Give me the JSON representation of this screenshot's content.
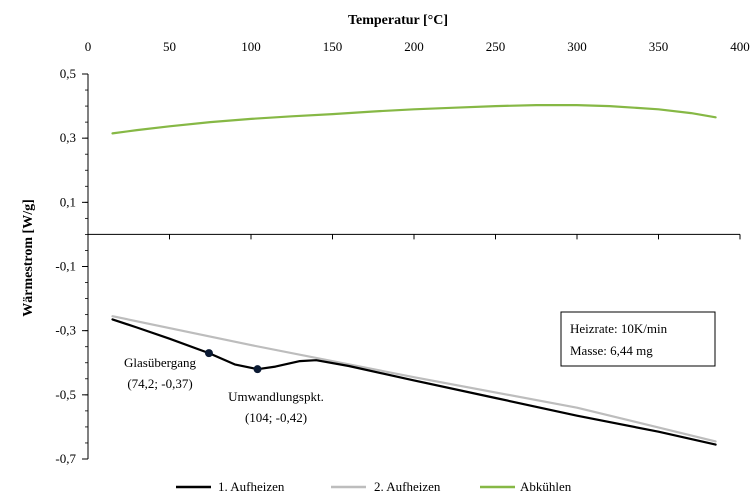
{
  "chart_data": {
    "type": "line",
    "title": "",
    "xlabel": "Temperatur [°C]",
    "ylabel": "Wärmestrom [W/g]",
    "xlim": [
      0,
      400
    ],
    "ylim": [
      -0.7,
      0.5
    ],
    "xticks": [
      0,
      50,
      100,
      150,
      200,
      250,
      300,
      350,
      400
    ],
    "xtick_labels": [
      "0",
      "50",
      "100",
      "150",
      "200",
      "250",
      "300",
      "350",
      "400"
    ],
    "yticks": [
      0.5,
      0.3,
      0.1,
      -0.1,
      -0.3,
      -0.5,
      -0.7
    ],
    "ytick_labels": [
      "0,5",
      "0,3",
      "0,1",
      "-0,1",
      "-0,3",
      "-0,5",
      "-0,7"
    ],
    "x_axis_position": "top",
    "grid": false,
    "legend_position": "bottom",
    "series": [
      {
        "name": "1. Aufheizen",
        "color": "#000000",
        "x": [
          15,
          30,
          50,
          74.2,
          90,
          104,
          115,
          130,
          140,
          160,
          200,
          250,
          300,
          350,
          385
        ],
        "y": [
          -0.265,
          -0.29,
          -0.325,
          -0.37,
          -0.405,
          -0.42,
          -0.412,
          -0.395,
          -0.392,
          -0.41,
          -0.455,
          -0.51,
          -0.565,
          -0.615,
          -0.655
        ]
      },
      {
        "name": "2. Aufheizen",
        "color": "#bdbdbd",
        "x": [
          15,
          100,
          200,
          300,
          385
        ],
        "y": [
          -0.255,
          -0.345,
          -0.445,
          -0.54,
          -0.645
        ]
      },
      {
        "name": "Abkühlen",
        "color": "#86b845",
        "x": [
          15,
          30,
          50,
          75,
          100,
          125,
          150,
          175,
          200,
          225,
          250,
          275,
          300,
          320,
          350,
          370,
          385
        ],
        "y": [
          0.315,
          0.325,
          0.337,
          0.35,
          0.36,
          0.368,
          0.375,
          0.383,
          0.39,
          0.395,
          0.4,
          0.403,
          0.403,
          0.4,
          0.39,
          0.378,
          0.365
        ]
      }
    ],
    "points": [
      {
        "x": 74.2,
        "y": -0.37
      },
      {
        "x": 104,
        "y": -0.42
      }
    ],
    "annotations": [
      {
        "label": "Glasübergang",
        "value": "(74,2; -0,37)"
      },
      {
        "label": "Umwandlungspkt.",
        "value": "(104; -0,42)"
      }
    ],
    "info_box": [
      "Heizrate: 10K/min",
      "Masse: 6,44 mg"
    ]
  }
}
